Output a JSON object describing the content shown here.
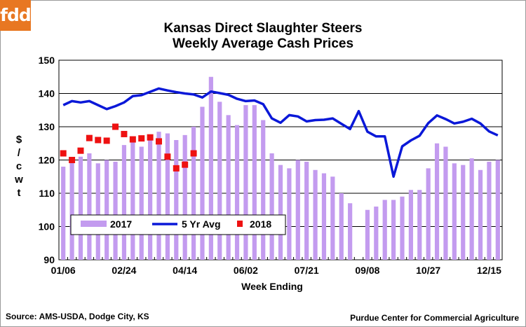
{
  "logo": {
    "text": "fdd"
  },
  "chart_data": {
    "type": "bar",
    "title": [
      "Kansas Direct Slaughter Steers",
      "Weekly Average Cash Prices"
    ],
    "xlabel": "Week Ending",
    "ylabel": "$/cwt",
    "ylim": [
      90,
      150
    ],
    "yticks": [
      90,
      100,
      110,
      120,
      130,
      140,
      150
    ],
    "grid": true,
    "legend_position": "bottom-left",
    "x_tick_labels": [
      {
        "index": 0,
        "label": "01/06"
      },
      {
        "index": 7,
        "label": "02/24"
      },
      {
        "index": 14,
        "label": "04/14"
      },
      {
        "index": 21,
        "label": "06/02"
      },
      {
        "index": 28,
        "label": "07/21"
      },
      {
        "index": 35,
        "label": "09/08"
      },
      {
        "index": 42,
        "label": "10/27"
      },
      {
        "index": 49,
        "label": "12/15"
      }
    ],
    "colors": {
      "2017": "#c39bef",
      "5 Yr Avg": "#0a18d8",
      "2018": "#ee1111"
    },
    "series": [
      {
        "name": "2017",
        "type": "bar",
        "values": [
          118,
          120,
          121,
          122,
          119,
          120,
          119.5,
          124.5,
          126.5,
          124,
          127,
          128.5,
          128,
          126,
          127.5,
          130,
          136,
          145,
          137.5,
          133.5,
          130.5,
          136.5,
          136.5,
          132,
          122,
          118.5,
          117.5,
          120,
          119.5,
          117,
          116,
          115,
          110,
          107,
          null,
          105,
          106,
          108,
          108,
          109,
          111,
          111,
          117.5,
          125,
          124,
          119,
          118.5,
          120.5,
          117,
          119.5,
          120
        ]
      },
      {
        "name": "5 Yr Avg",
        "type": "line",
        "values": [
          136.5,
          137.7,
          137.3,
          137.7,
          136.5,
          135.3,
          136.2,
          137.3,
          139.2,
          139.5,
          140.5,
          141.5,
          140.9,
          140.4,
          140,
          139.7,
          138.8,
          140.6,
          140.1,
          139.6,
          138.4,
          137.7,
          137.9,
          136.8,
          132.5,
          131.2,
          133.5,
          133.1,
          131.6,
          132,
          132.1,
          132.5,
          130.9,
          129.3,
          134.7,
          128.5,
          127.1,
          127.1,
          115,
          124.1,
          125.9,
          127.3,
          131.1,
          133.4,
          132.3,
          131,
          131.5,
          132.4,
          131,
          128.6,
          127.4
        ]
      },
      {
        "name": "2018",
        "type": "scatter",
        "values": [
          122,
          120,
          122.8,
          126.6,
          126,
          125.8,
          130,
          127.8,
          126.2,
          126.5,
          126.8,
          125.6,
          121,
          117.5,
          118.6,
          122
        ]
      }
    ]
  },
  "footer": {
    "source": "Source:  AMS-USDA, Dodge City, KS",
    "credit": "Purdue Center for Commercial Agriculture"
  }
}
